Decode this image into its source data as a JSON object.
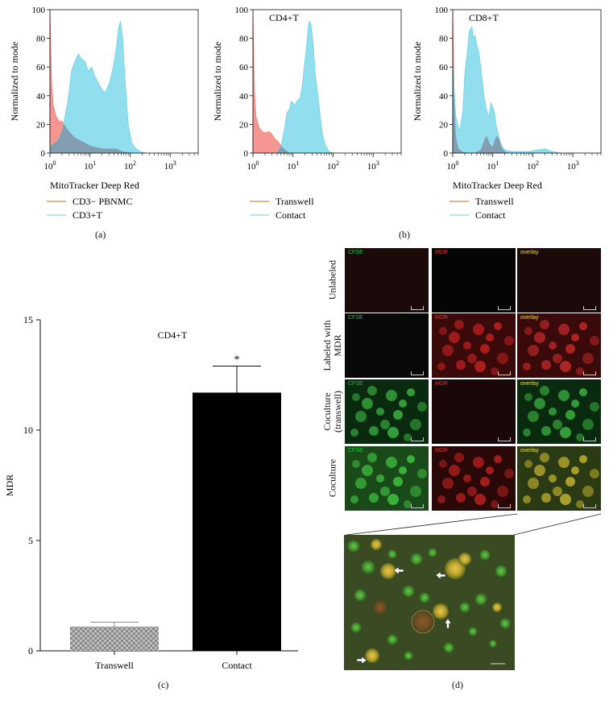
{
  "chart_data": [
    {
      "type": "area",
      "panel": "a",
      "title": "",
      "xlabel": "MitoTracker Deep Red",
      "ylabel": "Normalized to mode",
      "xscale": "log",
      "xlim": [
        1,
        5000
      ],
      "ylim": [
        0,
        100
      ],
      "xticks": [
        "10^0",
        "10^1",
        "10^2",
        "10^3"
      ],
      "yticks": [
        "0",
        "20",
        "40",
        "60",
        "80",
        "100"
      ],
      "legend": "bottom-left",
      "series": [
        {
          "name": "CD3− PBNMC",
          "color": "#f47c74",
          "x": [
            1.0,
            1.05,
            1.1,
            1.2,
            1.4,
            1.7,
            2.0,
            2.5,
            3.2,
            4.0,
            5.5,
            7.5,
            10,
            14,
            20,
            30,
            45,
            65,
            90,
            150
          ],
          "y": [
            100,
            70,
            48,
            34,
            26,
            22,
            22,
            18,
            14,
            11,
            9,
            7,
            5,
            4,
            3,
            3,
            3,
            1,
            0.5,
            0
          ]
        },
        {
          "name": "CD3+T",
          "color": "#6cd3ea",
          "x": [
            1.0,
            1.5,
            2.0,
            2.8,
            3.5,
            4.5,
            5.2,
            6.0,
            7.5,
            9.0,
            11,
            13,
            16,
            20,
            24,
            30,
            38,
            45,
            52,
            58,
            65,
            75,
            90,
            110,
            140,
            180,
            250
          ],
          "y": [
            5,
            8,
            15,
            36,
            58,
            66,
            69,
            66,
            64,
            57,
            60,
            54,
            49,
            44,
            42,
            48,
            60,
            72,
            88,
            92,
            80,
            50,
            20,
            7,
            3,
            1,
            0
          ]
        }
      ]
    },
    {
      "type": "area",
      "panel": "b-left",
      "title": "CD4+T",
      "xlabel": "",
      "ylabel": "Normalized to mode",
      "xscale": "log",
      "xlim": [
        1,
        5000
      ],
      "ylim": [
        0,
        100
      ],
      "xticks": [
        "10^0",
        "10^1",
        "10^2",
        "10^3"
      ],
      "yticks": [
        "0",
        "20",
        "40",
        "60",
        "80",
        "100"
      ],
      "legend": "bottom-left",
      "series": [
        {
          "name": "Transwell",
          "color": "#f47c74",
          "x": [
            1.0,
            1.05,
            1.1,
            1.2,
            1.4,
            1.7,
            2.0,
            2.5,
            3.0,
            3.5,
            4.2,
            5.0,
            6.5,
            8.0
          ],
          "y": [
            100,
            60,
            40,
            25,
            18,
            15,
            14,
            15,
            13,
            10,
            8,
            5,
            2,
            0
          ]
        },
        {
          "name": "Contact",
          "color": "#6cd3ea",
          "x": [
            4.0,
            5.0,
            6.0,
            7.0,
            8.0,
            9.0,
            10,
            11,
            13,
            15,
            17,
            19,
            21,
            23,
            25,
            28,
            32,
            36,
            42,
            48,
            55,
            65,
            80,
            100
          ],
          "y": [
            0,
            5,
            15,
            28,
            30,
            36,
            35,
            33,
            37,
            38,
            47,
            60,
            70,
            82,
            92,
            90,
            75,
            55,
            40,
            25,
            12,
            5,
            1,
            0
          ]
        }
      ]
    },
    {
      "type": "area",
      "panel": "b-right",
      "title": "CD8+T",
      "xlabel": "MitoTracker Deep Red",
      "ylabel": "Normalized to mode",
      "xscale": "log",
      "xlim": [
        1,
        5000
      ],
      "ylim": [
        0,
        100
      ],
      "xticks": [
        "10^0",
        "10^1",
        "10^2",
        "10^3"
      ],
      "yticks": [
        "0",
        "20",
        "40",
        "60",
        "80",
        "100"
      ],
      "legend": "bottom-left",
      "series": [
        {
          "name": "Transwell",
          "color": "#f47c74",
          "x": [
            1.0,
            1.05,
            1.1,
            1.2,
            1.4,
            1.7,
            2.0,
            2.5,
            3.5,
            5.0,
            6.0,
            7.0,
            8.5,
            10,
            11.5,
            13,
            15,
            17,
            20,
            25
          ],
          "y": [
            100,
            60,
            30,
            10,
            3,
            1,
            0.5,
            0,
            0,
            2,
            8,
            12,
            6,
            4,
            10,
            12,
            8,
            3,
            1,
            0
          ]
        },
        {
          "name": "Contact",
          "color": "#6cd3ea",
          "x": [
            1.0,
            1.2,
            1.5,
            1.8,
            2.0,
            2.3,
            2.6,
            3.0,
            3.3,
            3.6,
            4.0,
            4.5,
            5.0,
            5.5,
            6.0,
            7.0,
            8.0,
            9.0,
            10,
            11,
            12,
            14,
            16,
            20,
            30,
            50,
            80,
            120,
            200,
            300,
            500
          ],
          "y": [
            60,
            25,
            15,
            30,
            55,
            70,
            85,
            88,
            80,
            82,
            75,
            70,
            60,
            50,
            40,
            30,
            25,
            35,
            32,
            28,
            20,
            12,
            6,
            2,
            1,
            1,
            1,
            2,
            3,
            1,
            0
          ]
        }
      ]
    },
    {
      "type": "bar",
      "panel": "c",
      "title": "CD4+T",
      "xlabel": "",
      "ylabel": "MDR",
      "ylim": [
        0,
        15
      ],
      "yticks": [
        "0",
        "5",
        "10",
        "15"
      ],
      "categories": [
        "Transwell",
        "Contact"
      ],
      "values": [
        1.1,
        11.7
      ],
      "errors": [
        0.2,
        1.2
      ],
      "colors": [
        "#a5a5a5",
        "#000000"
      ],
      "annotations": [
        "*"
      ]
    }
  ],
  "labels": {
    "a": "(a)",
    "b": "(b)",
    "c": "(c)",
    "d": "(d)"
  },
  "microscopy": {
    "columns": [
      "CFSE",
      "MDR",
      "overlay"
    ],
    "column_colors": [
      "#22c43a",
      "#e83030",
      "#f0e040"
    ],
    "rows": [
      {
        "label": "Unlabeled"
      },
      {
        "label": "Labeled with MDR"
      },
      {
        "label": "Coculture (transwell)"
      },
      {
        "label": "Coculture"
      }
    ]
  }
}
